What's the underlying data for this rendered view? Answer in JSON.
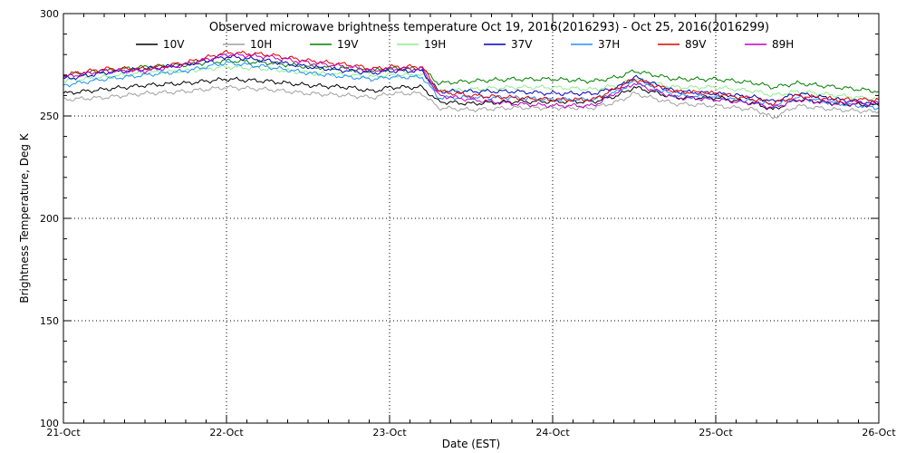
{
  "chart_data": {
    "type": "line",
    "title": "Observed microwave brightness temperature Oct 19, 2016(2016293) - Oct 25, 2016(2016299)",
    "xlabel": "Date (EST)",
    "ylabel": "Brightness Temperature, Deg K",
    "x_ticks": [
      "21-Oct",
      "22-Oct",
      "23-Oct",
      "24-Oct",
      "25-Oct",
      "26-Oct"
    ],
    "xlim": [
      0,
      5
    ],
    "ylim": [
      100,
      300
    ],
    "y_ticks": [
      100,
      150,
      200,
      250,
      300
    ],
    "grid": true,
    "legend_position": "top",
    "x": [
      0,
      0.25,
      0.5,
      0.75,
      1.0,
      1.25,
      1.5,
      1.75,
      1.9,
      2.0,
      2.2,
      2.3,
      2.5,
      2.75,
      3.0,
      3.25,
      3.4,
      3.5,
      3.75,
      4.0,
      4.25,
      4.35,
      4.5,
      4.75,
      5.0
    ],
    "series": [
      {
        "name": "10V",
        "color": "#000000",
        "values": [
          261,
          263,
          265,
          266,
          268,
          267,
          265,
          264,
          262,
          264,
          264,
          257,
          256,
          257,
          257,
          257,
          260,
          264,
          259,
          259,
          256,
          253,
          258,
          256,
          255
        ]
      },
      {
        "name": "10H",
        "color": "#a0a0a0",
        "values": [
          258,
          259,
          261,
          262,
          264,
          263,
          261,
          260,
          259,
          261,
          261,
          254,
          253,
          254,
          254,
          254,
          257,
          261,
          256,
          255,
          253,
          249,
          255,
          253,
          252
        ]
      },
      {
        "name": "19V",
        "color": "#008000",
        "values": [
          270,
          272,
          274,
          275,
          277,
          276,
          274,
          273,
          272,
          273,
          273,
          266,
          267,
          268,
          268,
          267,
          269,
          272,
          268,
          268,
          266,
          264,
          266,
          264,
          262
        ]
      },
      {
        "name": "19H",
        "color": "#90ee90",
        "values": [
          267,
          269,
          271,
          272,
          274,
          273,
          271,
          270,
          269,
          270,
          270,
          262,
          263,
          264,
          264,
          263,
          265,
          268,
          264,
          264,
          262,
          260,
          262,
          260,
          258
        ]
      },
      {
        "name": "37V",
        "color": "#0000c0",
        "values": [
          268,
          271,
          273,
          275,
          279,
          277,
          274,
          272,
          271,
          272,
          272,
          262,
          262,
          262,
          261,
          261,
          264,
          269,
          262,
          261,
          259,
          257,
          261,
          258,
          256
        ]
      },
      {
        "name": "37H",
        "color": "#1e90ff",
        "values": [
          265,
          268,
          270,
          272,
          276,
          274,
          271,
          269,
          268,
          269,
          269,
          259,
          259,
          259,
          258,
          258,
          262,
          267,
          260,
          259,
          257,
          255,
          259,
          256,
          254
        ]
      },
      {
        "name": "89V",
        "color": "#e00000",
        "values": [
          270,
          273,
          273,
          276,
          281,
          280,
          277,
          275,
          273,
          274,
          274,
          262,
          260,
          259,
          258,
          258,
          264,
          268,
          262,
          261,
          258,
          256,
          260,
          258,
          258
        ]
      },
      {
        "name": "89H",
        "color": "#c000c0",
        "values": [
          269,
          272,
          272,
          275,
          280,
          279,
          276,
          274,
          272,
          273,
          273,
          260,
          258,
          256,
          255,
          255,
          262,
          266,
          259,
          258,
          256,
          254,
          258,
          256,
          256
        ]
      }
    ]
  }
}
